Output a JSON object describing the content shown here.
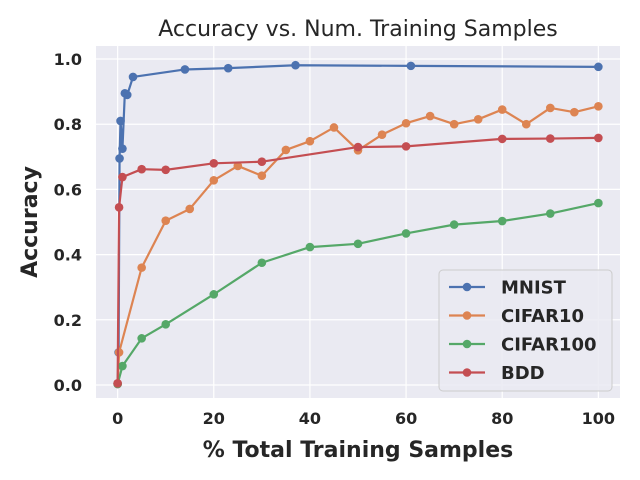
{
  "chart_data": {
    "type": "line",
    "title": "Accuracy vs. Num. Training Samples",
    "xlabel": "% Total Training Samples",
    "ylabel": "Accuracy",
    "xlim": [
      -4.5,
      104.5
    ],
    "ylim": [
      -0.04,
      1.04
    ],
    "xticks": [
      0,
      20,
      40,
      60,
      80,
      100
    ],
    "yticks": [
      0.0,
      0.2,
      0.4,
      0.6,
      0.8,
      1.0
    ],
    "grid": true,
    "legend_position": "lower-right",
    "background": "#eaeaf2",
    "series": [
      {
        "name": "MNIST",
        "color": "#4c72b0",
        "x": [
          0,
          0.2,
          0.4,
          0.6,
          1,
          1.5,
          2,
          3.2,
          14,
          23,
          37,
          61,
          100
        ],
        "y": [
          0.003,
          0.1,
          0.695,
          0.81,
          0.725,
          0.895,
          0.89,
          0.945,
          0.968,
          0.972,
          0.981,
          0.979,
          0.976
        ]
      },
      {
        "name": "CIFAR10",
        "color": "#dd8452",
        "x": [
          0,
          0.3,
          5,
          10,
          15,
          20,
          25,
          30,
          35,
          40,
          45,
          50,
          55,
          60,
          65,
          70,
          75,
          80,
          85,
          90,
          95,
          100
        ],
        "y": [
          0.003,
          0.1,
          0.36,
          0.504,
          0.54,
          0.628,
          0.672,
          0.642,
          0.721,
          0.748,
          0.79,
          0.72,
          0.768,
          0.803,
          0.825,
          0.8,
          0.815,
          0.845,
          0.8,
          0.85,
          0.837,
          0.855
        ]
      },
      {
        "name": "CIFAR100",
        "color": "#55a868",
        "x": [
          0,
          1,
          5,
          10,
          20,
          30,
          40,
          50,
          60,
          70,
          80,
          90,
          100
        ],
        "y": [
          0.003,
          0.058,
          0.143,
          0.186,
          0.278,
          0.375,
          0.423,
          0.433,
          0.465,
          0.492,
          0.503,
          0.526,
          0.558
        ]
      },
      {
        "name": "BDD",
        "color": "#c44e52",
        "x": [
          0,
          0.3,
          1,
          5,
          10,
          20,
          30,
          50,
          60,
          80,
          90,
          100
        ],
        "y": [
          0.005,
          0.545,
          0.638,
          0.662,
          0.66,
          0.68,
          0.685,
          0.73,
          0.732,
          0.755,
          0.756,
          0.758
        ]
      }
    ]
  }
}
